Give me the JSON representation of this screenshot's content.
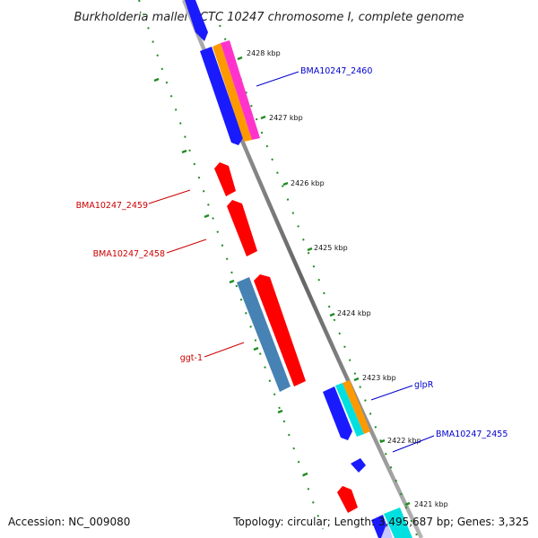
{
  "title": "Burkholderia mallei NCTC 10247 chromosome I, complete genome",
  "footer": {
    "accession": "Accession: NC_009080",
    "summary": "Topology: circular; Length: 3,495,687 bp; Genes: 3,325"
  },
  "colors": {
    "backbone": "#888888",
    "ticks": "#228b22",
    "forward_gene": "#1a1aff",
    "reverse_gene": "#ff0000",
    "forward_label": "#0000cc",
    "reverse_label": "#cc0000",
    "cds_cyan": "#00e0e0",
    "cds_orange": "#ff9900",
    "cds_magenta": "#ff33cc",
    "cds_steelblue": "#4682b4"
  },
  "ticks": [
    {
      "label": "2428 kbp"
    },
    {
      "label": "2427 kbp"
    },
    {
      "label": "2426 kbp"
    },
    {
      "label": "2425 kbp"
    },
    {
      "label": "2424 kbp"
    },
    {
      "label": "2423 kbp"
    },
    {
      "label": "2422 kbp"
    },
    {
      "label": "2421 kbp"
    }
  ],
  "gene_labels": [
    {
      "name": "BMA10247_2460",
      "strand": "forward"
    },
    {
      "name": "BMA10247_2459",
      "strand": "reverse"
    },
    {
      "name": "BMA10247_2458",
      "strand": "reverse"
    },
    {
      "name": "ggt-1",
      "strand": "reverse"
    },
    {
      "name": "glpR",
      "strand": "forward"
    },
    {
      "name": "BMA10247_2455",
      "strand": "forward"
    }
  ]
}
